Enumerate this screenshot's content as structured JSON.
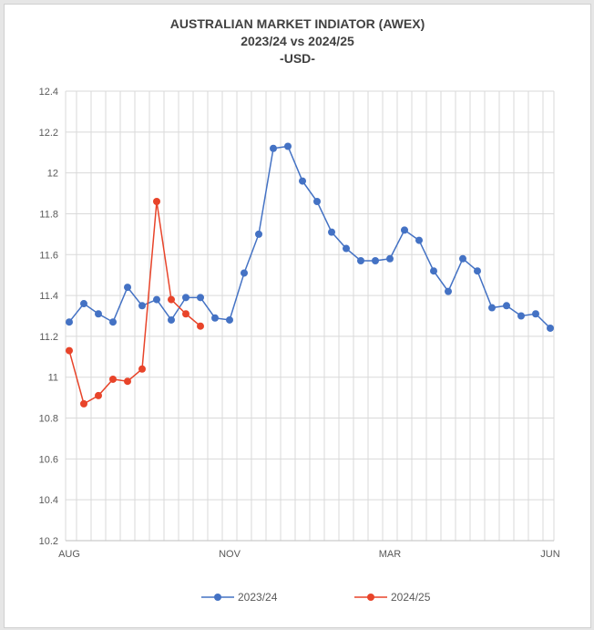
{
  "chart_data": {
    "type": "line",
    "title_lines": [
      "AUSTRALIAN MARKET INDIATOR (AWEX)",
      "2023/24 vs 2024/25",
      "-USD-"
    ],
    "ylim": [
      10.2,
      12.4
    ],
    "yticks": [
      "12.4",
      "12.2",
      "12",
      "11.8",
      "11.6",
      "11.4",
      "11.2",
      "11",
      "10.8",
      "10.6",
      "10.4",
      "10.2"
    ],
    "x_count": 34,
    "xtick_labels": [
      {
        "index": 0,
        "label": "AUG"
      },
      {
        "index": 11,
        "label": "NOV"
      },
      {
        "index": 22,
        "label": "MAR"
      },
      {
        "index": 33,
        "label": "JUN"
      }
    ],
    "grid": true,
    "legend_position": "bottom",
    "series": [
      {
        "name": "2023/24",
        "color": "#4472c4",
        "values": [
          11.27,
          11.36,
          11.31,
          11.27,
          11.44,
          11.35,
          11.38,
          11.28,
          11.39,
          11.39,
          11.29,
          11.28,
          11.51,
          11.7,
          12.12,
          12.13,
          11.96,
          11.86,
          11.71,
          11.63,
          11.57,
          11.57,
          11.58,
          11.72,
          11.67,
          11.52,
          11.42,
          11.58,
          11.52,
          11.34,
          11.35,
          11.3,
          11.31,
          11.24
        ]
      },
      {
        "name": "2024/25",
        "color": "#e8442a",
        "values": [
          11.13,
          10.87,
          10.91,
          10.99,
          10.98,
          11.04,
          11.86,
          11.38,
          11.31,
          11.25
        ]
      }
    ]
  }
}
